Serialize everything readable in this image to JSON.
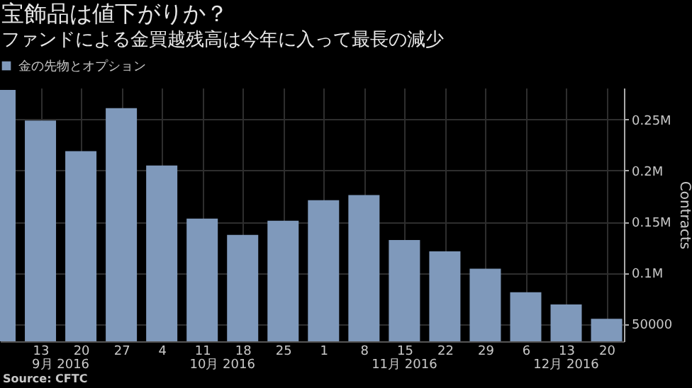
{
  "chart_data": {
    "type": "bar",
    "title": "宝飾品は値下がりか？",
    "subtitle": "ファンドによる金買越残高は今年に入って最長の減少",
    "x": [
      "2016-09-06",
      "2016-09-13",
      "2016-09-20",
      "2016-09-27",
      "2016-10-04",
      "2016-10-11",
      "2016-10-18",
      "2016-10-25",
      "2016-11-01",
      "2016-11-08",
      "2016-11-15",
      "2016-11-22",
      "2016-11-29",
      "2016-12-06",
      "2016-12-13",
      "2016-12-20"
    ],
    "series": [
      {
        "name": "金の先物とオプション",
        "color": "#7f99bb",
        "values": [
          279000,
          249000,
          219000,
          261000,
          205000,
          153000,
          137000,
          151000,
          171000,
          176000,
          132000,
          121000,
          104000,
          81000,
          69000,
          55000
        ]
      }
    ],
    "xlim": [
      "2016-09-06",
      "2016-12-23"
    ],
    "xticks": [
      {
        "value": "2016-09-13",
        "label": "13"
      },
      {
        "value": "2016-09-20",
        "label": "20"
      },
      {
        "value": "2016-09-27",
        "label": "27"
      },
      {
        "value": "2016-10-04",
        "label": "4"
      },
      {
        "value": "2016-10-11",
        "label": "11"
      },
      {
        "value": "2016-10-18",
        "label": "18"
      },
      {
        "value": "2016-10-25",
        "label": "25"
      },
      {
        "value": "2016-11-01",
        "label": "1"
      },
      {
        "value": "2016-11-08",
        "label": "8"
      },
      {
        "value": "2016-11-15",
        "label": "15"
      },
      {
        "value": "2016-11-22",
        "label": "22"
      },
      {
        "value": "2016-11-29",
        "label": "29"
      },
      {
        "value": "2016-12-06",
        "label": "6"
      },
      {
        "value": "2016-12-13",
        "label": "13"
      },
      {
        "value": "2016-12-20",
        "label": "20"
      }
    ],
    "ylim": [
      33000,
      281000
    ],
    "yticks": [
      50000,
      {
        "value": 100000,
        "label": "0.1M"
      },
      {
        "value": 150000,
        "label": "0.15M"
      },
      {
        "value": 200000,
        "label": "0.2M"
      },
      {
        "value": 250000,
        "label": "0.25M"
      }
    ],
    "ylabel": "Contracts",
    "annotations": [
      "9月 2016",
      "10月 2016",
      "11月 2016",
      "12月 2016",
      "Source: CFTC"
    ],
    "grid": true,
    "legend": "top left"
  }
}
